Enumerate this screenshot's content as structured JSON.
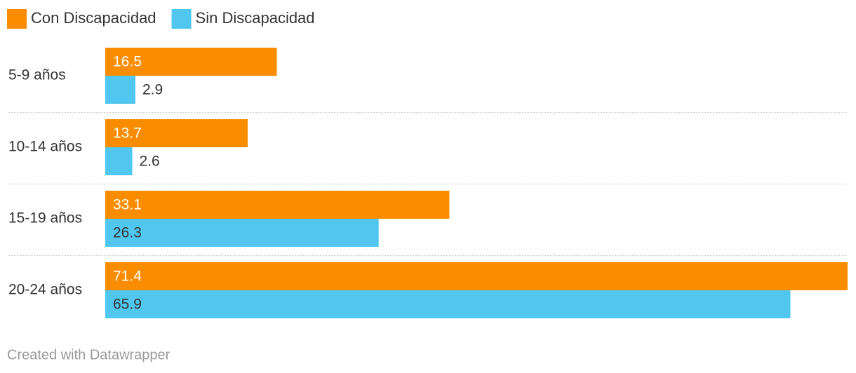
{
  "chart_data": {
    "type": "grouped-bar-horizontal",
    "categories": [
      "5-9 años",
      "10-14 años",
      "15-19 años",
      "20-24 años"
    ],
    "series": [
      {
        "name": "Con Discapacidad",
        "color": "#fa8c00",
        "values": [
          16.5,
          13.7,
          33.1,
          71.4
        ]
      },
      {
        "name": "Sin Discapacidad",
        "color": "#51c7f0",
        "values": [
          2.9,
          2.6,
          26.3,
          65.9
        ]
      }
    ],
    "xlim": [
      0,
      71.4
    ],
    "footer": "Created with Datawrapper"
  }
}
